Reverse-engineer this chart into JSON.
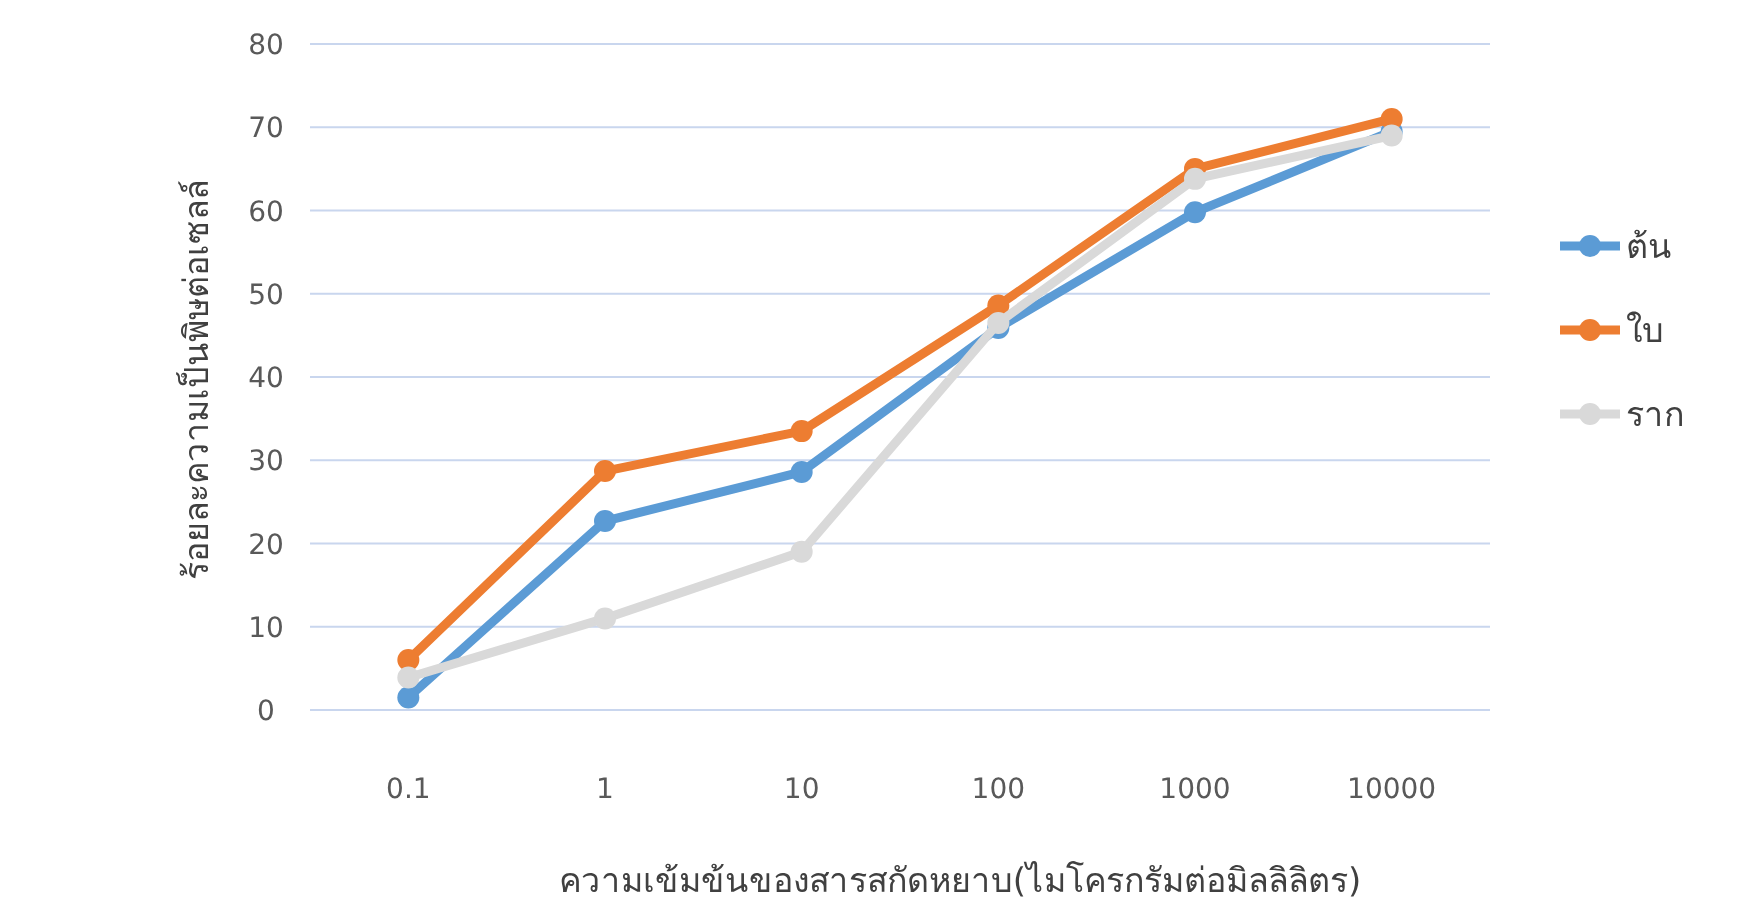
{
  "chart_data": {
    "type": "line",
    "xlabel": "ความเข้มข้นของสารสกัดหยาบ(ไมโครกรัมต่อมิลลิลิตร)",
    "ylabel": "ร้อยละความเป็นพิษต่อเซลล์",
    "categories": [
      "0.1",
      "1",
      "10",
      "100",
      "1000",
      "10000"
    ],
    "series": [
      {
        "name": "ต้น",
        "color": "#5b9bd5",
        "values": [
          1.5,
          22.7,
          28.6,
          45.9,
          59.8,
          69.5
        ]
      },
      {
        "name": "ใบ",
        "color": "#ed7d31",
        "values": [
          6,
          28.7,
          33.5,
          48.6,
          65,
          71
        ]
      },
      {
        "name": "ราก",
        "color": "#d9d9d9",
        "values": [
          3.9,
          11,
          19,
          46.5,
          63.8,
          69
        ]
      }
    ],
    "ylim": [
      0,
      80
    ],
    "yticks": [
      0,
      10,
      20,
      30,
      40,
      50,
      60,
      70,
      80
    ],
    "grid": "y",
    "legend": "right",
    "marker": "circle",
    "line_style": "solid"
  }
}
